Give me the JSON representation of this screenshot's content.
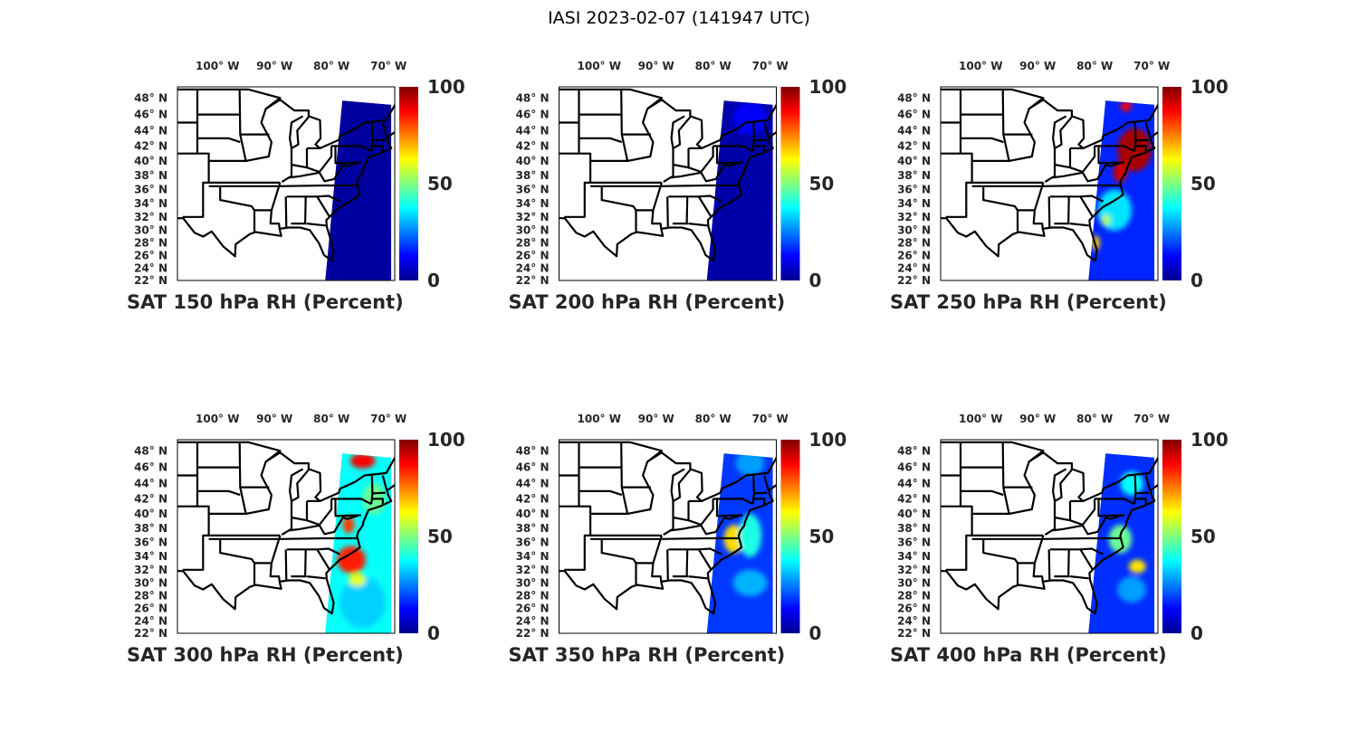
{
  "figure": {
    "title": "IASI 2023-02-07 (141947 UTC)"
  },
  "chart_data": [
    {
      "type": "heatmap",
      "title": "SAT 150 hPa RH (Percent)",
      "base_value": 3,
      "fields": []
    },
    {
      "type": "heatmap",
      "title": "SAT 200 hPa RH (Percent)",
      "base_value": 4,
      "fields": [
        {
          "lon": -74,
          "lat": 45.5,
          "rlon": 3,
          "rlat": 2,
          "value": 12
        }
      ]
    },
    {
      "type": "heatmap",
      "title": "SAT 250 hPa RH (Percent)",
      "base_value": 16,
      "fields": [
        {
          "lon": -77,
          "lat": 33,
          "rlon": 3,
          "rlat": 3,
          "value": 35
        },
        {
          "lon": -73.5,
          "lat": 41.5,
          "rlon": 3,
          "rlat": 2.8,
          "value": 96
        },
        {
          "lon": -76,
          "lat": 38.5,
          "rlon": 1.2,
          "rlat": 1.5,
          "value": 92
        },
        {
          "lon": -75,
          "lat": 47,
          "rlon": 1,
          "rlat": 0.6,
          "value": 88
        },
        {
          "lon": -80.3,
          "lat": 28,
          "rlon": 0.7,
          "rlat": 1.2,
          "value": 68
        },
        {
          "lon": -78.5,
          "lat": 31.5,
          "rlon": 0.8,
          "rlat": 0.8,
          "value": 55
        }
      ]
    },
    {
      "type": "heatmap",
      "title": "SAT 300 hPa RH (Percent)",
      "base_value": 38,
      "fields": [
        {
          "lon": -75,
          "lat": 27,
          "rlon": 4,
          "rlat": 4,
          "value": 33
        },
        {
          "lon": -77,
          "lat": 33.5,
          "rlon": 2.5,
          "rlat": 2,
          "value": 85
        },
        {
          "lon": -75,
          "lat": 46.8,
          "rlon": 2.2,
          "rlat": 0.9,
          "value": 88
        },
        {
          "lon": -77.5,
          "lat": 38.5,
          "rlon": 1,
          "rlat": 1.2,
          "value": 82
        },
        {
          "lon": -73,
          "lat": 42,
          "rlon": 2,
          "rlat": 2,
          "value": 48
        },
        {
          "lon": -76,
          "lat": 30.5,
          "rlon": 1.5,
          "rlat": 1,
          "value": 60
        }
      ]
    },
    {
      "type": "heatmap",
      "title": "SAT 350 hPa RH (Percent)",
      "base_value": 18,
      "fields": [
        {
          "lon": -76.8,
          "lat": 36.5,
          "rlon": 1.8,
          "rlat": 2,
          "value": 66
        },
        {
          "lon": -74,
          "lat": 37,
          "rlon": 2,
          "rlat": 3,
          "value": 40
        },
        {
          "lon": -74,
          "lat": 46.5,
          "rlon": 2.5,
          "rlat": 1.5,
          "value": 28
        },
        {
          "lon": -74,
          "lat": 30,
          "rlon": 3,
          "rlat": 2,
          "value": 30
        }
      ]
    },
    {
      "type": "heatmap",
      "title": "SAT 400 hPa RH (Percent)",
      "base_value": 17,
      "fields": [
        {
          "lon": -76,
          "lat": 36.5,
          "rlon": 2,
          "rlat": 2,
          "value": 48
        },
        {
          "lon": -73,
          "lat": 32.5,
          "rlon": 1.5,
          "rlat": 1,
          "value": 65
        },
        {
          "lon": -74,
          "lat": 44,
          "rlon": 2,
          "rlat": 1.5,
          "value": 38
        },
        {
          "lon": -74,
          "lat": 29,
          "rlon": 2.5,
          "rlat": 2,
          "value": 28
        }
      ]
    }
  ],
  "axes": {
    "x_ticks": [
      {
        "lon": -100,
        "label": "100° W"
      },
      {
        "lon": -90,
        "label": "90° W"
      },
      {
        "lon": -80,
        "label": "80° W"
      },
      {
        "lon": -70,
        "label": "70° W"
      }
    ],
    "y_ticks": [
      48,
      46,
      44,
      42,
      40,
      38,
      36,
      34,
      32,
      30,
      28,
      26,
      24,
      22
    ],
    "lon_range": [
      -107.5,
      -69.4
    ],
    "lat_range": [
      22,
      49.3
    ],
    "swath": [
      [
        -78.6,
        47.7
      ],
      [
        -70,
        47.2
      ],
      [
        -70,
        22
      ],
      [
        -81.6,
        22
      ]
    ]
  },
  "colorbar": {
    "colormap": "jet",
    "range": [
      0,
      100
    ],
    "ticks": [
      {
        "value": 100,
        "label": "100"
      },
      {
        "value": 50,
        "label": "50"
      },
      {
        "value": 0,
        "label": "0"
      }
    ]
  }
}
